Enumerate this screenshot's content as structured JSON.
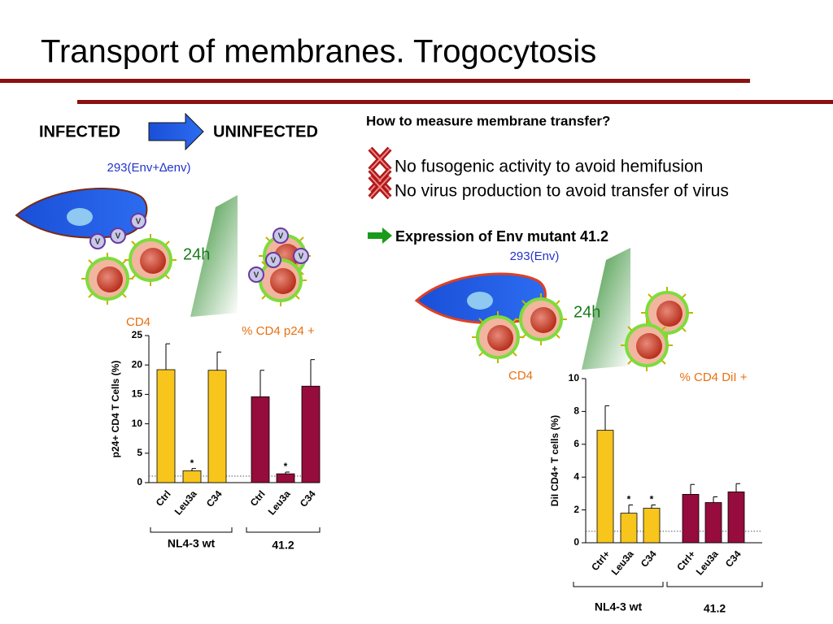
{
  "title": "Transport of membranes. Trogocytosis",
  "left": {
    "from": "INFECTED",
    "to": "UNINFECTED",
    "donor": "293(Env+∆env)",
    "time": "24h",
    "cell": "CD4",
    "readout": "% CD4 p24 +"
  },
  "right": {
    "question": "How to measure membrane transfer?",
    "bullets": [
      "No fusogenic activity to avoid hemifusion",
      "No virus production to avoid transfer of virus"
    ],
    "point": "Expression of Env mutant 41.2",
    "donor": "293(Env)",
    "time": "24h",
    "cell": "CD4",
    "readout": "% CD4 DiI +"
  },
  "chart_data": [
    {
      "type": "bar",
      "ylabel": "p24+ CD4 T Cells  (%)",
      "categories": [
        "Ctrl",
        "Leu3a",
        "C34",
        "Ctrl",
        "Leu3a",
        "C34"
      ],
      "values": [
        19.2,
        2.0,
        19.1,
        14.6,
        1.5,
        16.4
      ],
      "errors": [
        4.4,
        0.4,
        3.1,
        4.5,
        0.3,
        4.5
      ],
      "colors": [
        "#f7c51c",
        "#f7c51c",
        "#f7c51c",
        "#960c3c",
        "#960c3c",
        "#960c3c"
      ],
      "markers": [
        null,
        "*",
        null,
        null,
        "*",
        null
      ],
      "groups": [
        "NL4-3 wt",
        "41.2"
      ],
      "reference_line": 1.1,
      "ylim": [
        0,
        25
      ],
      "yticks": [
        0,
        5,
        10,
        15,
        20,
        25
      ]
    },
    {
      "type": "bar",
      "ylabel": "DiI CD4+  T cells (%)",
      "categories": [
        "Ctrl+",
        "Leu3a",
        "C34",
        "Ctrl+",
        "Leu3a",
        "C34"
      ],
      "values": [
        6.85,
        1.8,
        2.1,
        2.95,
        2.45,
        3.1
      ],
      "errors": [
        1.5,
        0.5,
        0.2,
        0.6,
        0.35,
        0.5
      ],
      "colors": [
        "#f7c51c",
        "#f7c51c",
        "#f7c51c",
        "#960c3c",
        "#960c3c",
        "#960c3c"
      ],
      "markers": [
        null,
        "*",
        "*",
        null,
        null,
        null
      ],
      "groups": [
        "NL4-3 wt",
        "41.2"
      ],
      "reference_line": 0.7,
      "ylim": [
        0,
        10
      ],
      "yticks": [
        0,
        2,
        4,
        6,
        8,
        10
      ]
    }
  ]
}
